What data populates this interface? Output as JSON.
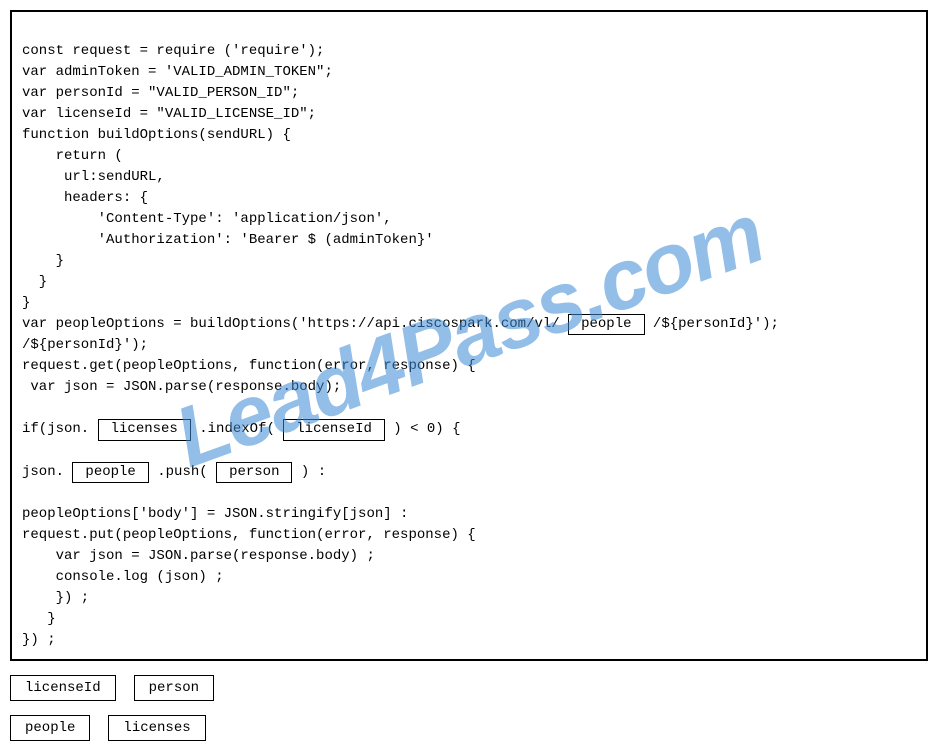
{
  "code": {
    "line1": "const request = require ('require');",
    "line2": "var adminToken = 'VALID_ADMIN_TOKEN\";",
    "line3": "var personId = \"VALID_PERSON_ID\";",
    "line4": "var licenseId = \"VALID_LICENSE_ID\";",
    "line5": "function buildOptions(sendURL) {",
    "line6": "    return (",
    "line7": "     url:sendURL,",
    "line8": "     headers: {",
    "line9": "         'Content-Type': 'application/json',",
    "line10": "         'Authorization': 'Bearer $ (adminToken}'",
    "line11": "    }",
    "line12": "  }",
    "line13": "}",
    "line14a": "var peopleOptions = buildOptions('https://api.ciscospark.com/vl/ ",
    "blank1": "people",
    "line14b": " /${personId}');",
    "line15": "/${personId}');",
    "line16": "request.get(peopleOptions, function(error, response) {",
    "line17": " var json = JSON.parse(response.body);",
    "line18a": "if(json. ",
    "blank2": "licenses",
    "line18b": " .indexOf( ",
    "blank3": "licenseId",
    "line18c": " ) < 0) {",
    "line19a": "json. ",
    "blank4": "people",
    "line19b": " .push( ",
    "blank5": "person",
    "line19c": " ) :",
    "line20": "peopleOptions['body'] = JSON.stringify[json] :",
    "line21": "request.put(peopleOptions, function(error, response) {",
    "line22": "    var json = JSON.parse(response.body) ;",
    "line23": "    console.log (json) ;",
    "line24": "    }) ;",
    "line25": "   }",
    "line26": "}) ;"
  },
  "options": {
    "opt1": "licenseId",
    "opt2": "person",
    "opt3": "people",
    "opt4": "licenses"
  },
  "watermark": "Lead4Pass.com"
}
